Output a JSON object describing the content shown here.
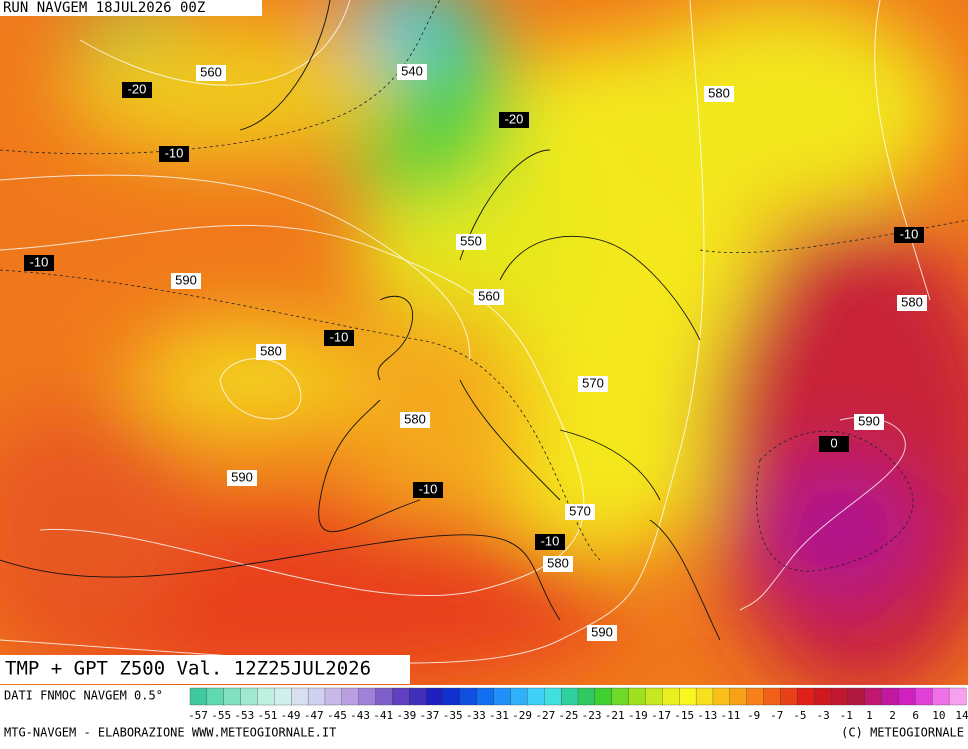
{
  "header": {
    "run": "RUN NAVGEM 18JUL2026 00Z",
    "title": "TMP + GPT Z500 Val. 12Z25JUL2026"
  },
  "footer": {
    "source": "DATI FNMOC NAVGEM 0.5°",
    "credit": "MTG-NAVGEM - ELABORAZIONE WWW.METEOGIORNALE.IT",
    "copyright": "(C) METEOGIORNALE"
  },
  "colorbar": {
    "ticks": [
      -57,
      -55,
      -53,
      -51,
      -49,
      -47,
      -45,
      -43,
      -41,
      -39,
      -37,
      -35,
      -33,
      -31,
      -29,
      -27,
      -25,
      -23,
      -21,
      -19,
      -17,
      -15,
      -13,
      -11,
      -9,
      -7,
      -5,
      -3,
      -1,
      1,
      2,
      6,
      10,
      14
    ]
  },
  "height_labels": [
    560,
    540,
    580,
    550,
    590,
    560,
    580,
    570,
    580,
    590,
    590,
    570,
    580,
    590,
    580
  ],
  "temp_labels": [
    -20,
    -20,
    -10,
    -10,
    -10,
    -10,
    -10,
    -10,
    0
  ]
}
